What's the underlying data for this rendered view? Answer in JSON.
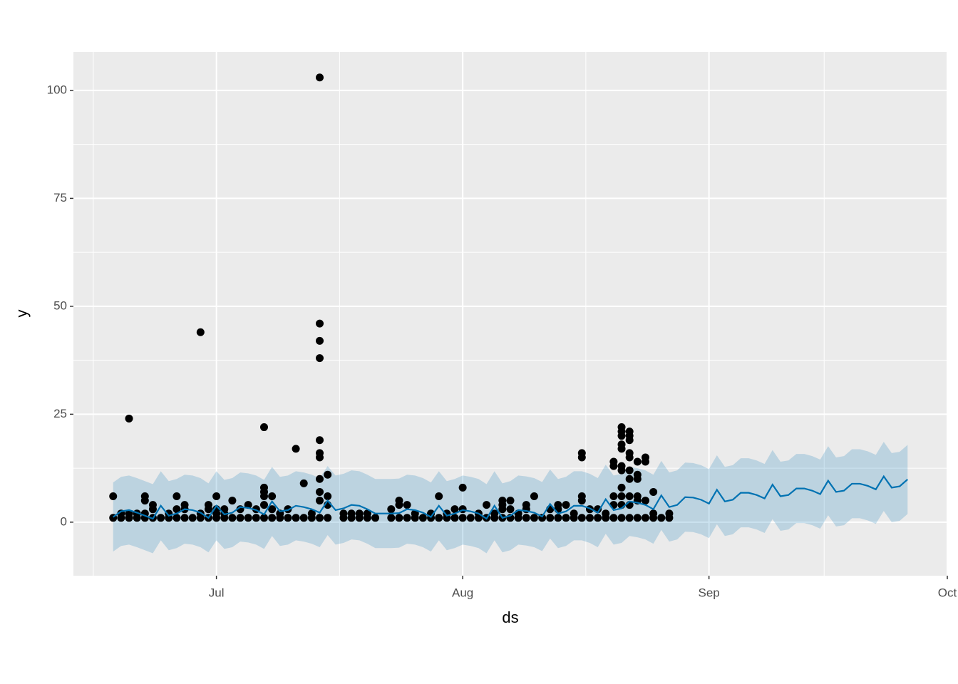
{
  "chart_data": {
    "type": "scatter",
    "x_label": "ds",
    "y_label": "y",
    "color": "#000000",
    "x": [
      -13,
      -13,
      -12,
      -12,
      -11,
      -11,
      -11,
      -10,
      -10,
      -9,
      -9,
      -9,
      -9,
      -8,
      -8,
      -8,
      -7,
      -6,
      -6,
      -5,
      -5,
      -5,
      -4,
      -4,
      -4,
      -3,
      -2,
      -2,
      -2,
      -1,
      -1,
      -1,
      0,
      0,
      0,
      0,
      1,
      1,
      1,
      2,
      2,
      3,
      3,
      4,
      4,
      5,
      5,
      6,
      6,
      6,
      6,
      6,
      6,
      7,
      7,
      7,
      8,
      8,
      9,
      9,
      10,
      10,
      11,
      11,
      12,
      12,
      13,
      13,
      13,
      13,
      13,
      13,
      13,
      13,
      13,
      13,
      13,
      14,
      14,
      14,
      14,
      16,
      16,
      17,
      17,
      18,
      18,
      19,
      19,
      20,
      22,
      22,
      23,
      23,
      23,
      24,
      24,
      25,
      25,
      26,
      27,
      27,
      28,
      28,
      29,
      29,
      30,
      30,
      31,
      31,
      31,
      32,
      33,
      33,
      34,
      34,
      35,
      35,
      36,
      36,
      36,
      36,
      37,
      37,
      37,
      38,
      38,
      39,
      39,
      39,
      40,
      40,
      41,
      42,
      42,
      43,
      43,
      43,
      44,
      44,
      45,
      45,
      46,
      46,
      46,
      46,
      46,
      47,
      47,
      48,
      48,
      49,
      49,
      50,
      50,
      50,
      50,
      50,
      51,
      51,
      51,
      51,
      51,
      51,
      51,
      51,
      51,
      51,
      51,
      52,
      52,
      52,
      52,
      52,
      52,
      52,
      52,
      52,
      52,
      53,
      53,
      53,
      53,
      53,
      53,
      54,
      54,
      54,
      54,
      55,
      55,
      55,
      56,
      57,
      57
    ],
    "values": [
      1,
      6,
      1,
      2,
      1,
      24,
      2,
      1,
      2,
      1,
      5,
      6,
      2,
      1,
      4,
      3,
      1,
      1,
      2,
      1,
      6,
      3,
      1,
      4,
      3,
      1,
      1,
      44,
      2,
      1,
      3,
      4,
      1,
      2,
      3,
      6,
      1,
      2,
      3,
      1,
      5,
      1,
      3,
      1,
      4,
      1,
      3,
      1,
      4,
      22,
      8,
      7,
      6,
      1,
      6,
      3,
      1,
      2,
      1,
      3,
      1,
      17,
      1,
      9,
      1,
      2,
      1,
      103,
      46,
      42,
      38,
      19,
      16,
      15,
      10,
      7,
      5,
      1,
      11,
      6,
      4,
      1,
      2,
      1,
      2,
      1,
      2,
      1,
      2,
      1,
      1,
      3,
      1,
      5,
      4,
      1,
      4,
      1,
      2,
      1,
      1,
      2,
      1,
      6,
      1,
      2,
      1,
      3,
      1,
      3,
      8,
      1,
      1,
      2,
      1,
      4,
      1,
      2,
      1,
      5,
      4,
      3,
      1,
      5,
      3,
      1,
      2,
      1,
      4,
      3,
      1,
      6,
      1,
      1,
      3,
      1,
      4,
      3,
      1,
      4,
      1,
      2,
      1,
      16,
      15,
      6,
      5,
      1,
      3,
      1,
      3,
      1,
      2,
      1,
      14,
      13,
      6,
      4,
      1,
      22,
      21,
      20,
      18,
      17,
      13,
      12,
      8,
      6,
      4,
      1,
      21,
      20,
      19,
      16,
      15,
      12,
      10,
      6,
      4,
      1,
      11,
      10,
      6,
      14,
      5,
      1,
      15,
      14,
      5,
      1,
      7,
      2,
      1,
      1,
      2
    ],
    "forecast": {
      "color": "#0072B2",
      "x": [
        -13,
        -12,
        -11,
        -10,
        -9,
        -8,
        -7,
        -6,
        -5,
        -4,
        -3,
        -2,
        -1,
        0,
        1,
        2,
        3,
        4,
        5,
        6,
        7,
        8,
        9,
        10,
        11,
        12,
        13,
        14,
        15,
        16,
        17,
        18,
        19,
        20,
        21,
        22,
        23,
        24,
        25,
        26,
        27,
        28,
        29,
        30,
        31,
        32,
        33,
        34,
        35,
        36,
        37,
        38,
        39,
        40,
        41,
        42,
        43,
        44,
        45,
        46,
        47,
        48,
        49,
        50,
        51,
        52,
        53,
        54,
        55,
        56,
        57,
        58,
        59,
        60,
        61,
        62,
        63,
        64,
        65,
        66,
        67,
        68,
        69,
        70,
        71,
        72,
        73,
        74,
        75,
        76,
        77,
        78,
        79,
        80,
        81,
        82,
        83,
        84,
        85,
        86,
        87
      ],
      "values": [
        1.2,
        2.5,
        2.8,
        2.2,
        1.5,
        0.8,
        3.8,
        1.5,
        2.0,
        3.0,
        2.8,
        2.2,
        1.0,
        3.8,
        1.8,
        2.2,
        3.5,
        3.3,
        2.8,
        1.8,
        4.8,
        2.5,
        2.8,
        3.8,
        3.5,
        3.0,
        2.2,
        5.0,
        2.8,
        3.2,
        4.0,
        3.8,
        3.0,
        2.0,
        2.0,
        2.0,
        2.1,
        3.0,
        2.8,
        2.2,
        1.2,
        3.8,
        1.5,
        2.0,
        2.8,
        2.5,
        2.0,
        0.8,
        3.8,
        1.0,
        1.5,
        2.8,
        2.6,
        2.2,
        1.3,
        4.2,
        2.0,
        2.5,
        3.8,
        3.8,
        3.2,
        2.2,
        5.3,
        2.8,
        3.2,
        4.8,
        4.5,
        4.0,
        3.0,
        6.2,
        3.5,
        4.0,
        5.8,
        5.7,
        5.2,
        4.3,
        7.5,
        4.8,
        5.2,
        6.8,
        6.8,
        6.3,
        5.5,
        8.7,
        6.0,
        6.3,
        7.8,
        7.8,
        7.3,
        6.5,
        9.6,
        7.0,
        7.3,
        8.9,
        8.9,
        8.4,
        7.6,
        10.6,
        8.0,
        8.3,
        9.9
      ],
      "lower": [
        -6.8,
        -5.5,
        -5.2,
        -5.8,
        -6.5,
        -7.2,
        -4.2,
        -6.5,
        -6.0,
        -5.0,
        -5.2,
        -5.8,
        -7.0,
        -4.2,
        -6.2,
        -5.8,
        -4.5,
        -4.7,
        -5.2,
        -6.2,
        -3.2,
        -5.5,
        -5.2,
        -4.2,
        -4.5,
        -5.0,
        -5.8,
        -3.0,
        -5.2,
        -4.8,
        -4.0,
        -4.2,
        -5.0,
        -6.0,
        -6.0,
        -6.0,
        -5.9,
        -5.0,
        -5.2,
        -5.8,
        -6.8,
        -4.2,
        -6.5,
        -6.0,
        -5.2,
        -5.5,
        -6.0,
        -7.2,
        -4.2,
        -7.0,
        -6.5,
        -5.2,
        -5.4,
        -5.8,
        -6.7,
        -3.8,
        -6.0,
        -5.5,
        -4.2,
        -4.2,
        -4.8,
        -5.8,
        -2.7,
        -5.2,
        -4.8,
        -3.2,
        -3.5,
        -4.0,
        -5.0,
        -1.8,
        -4.5,
        -4.0,
        -2.2,
        -2.3,
        -2.8,
        -3.7,
        -0.5,
        -3.2,
        -2.8,
        -1.2,
        -1.2,
        -1.7,
        -2.5,
        0.7,
        -2.0,
        -1.7,
        -0.2,
        -0.2,
        -0.7,
        -1.5,
        1.6,
        -1.0,
        -0.7,
        0.9,
        0.9,
        0.4,
        -0.4,
        2.6,
        0.0,
        0.3,
        1.9
      ],
      "upper": [
        9.2,
        10.5,
        10.8,
        10.2,
        9.5,
        8.8,
        11.8,
        9.5,
        10.0,
        11.0,
        10.8,
        10.2,
        9.0,
        11.8,
        9.8,
        10.2,
        11.5,
        11.3,
        10.8,
        9.8,
        12.8,
        10.5,
        10.8,
        11.8,
        11.5,
        11.0,
        10.2,
        13.0,
        10.8,
        11.2,
        12.0,
        11.8,
        11.0,
        10.0,
        10.0,
        10.0,
        10.1,
        11.0,
        10.8,
        10.2,
        9.2,
        11.8,
        9.5,
        10.0,
        10.8,
        10.5,
        10.0,
        8.8,
        11.8,
        9.0,
        9.5,
        10.8,
        10.6,
        10.2,
        9.3,
        12.2,
        10.0,
        10.5,
        11.8,
        11.8,
        11.2,
        10.2,
        13.3,
        10.8,
        11.2,
        12.8,
        12.5,
        12.0,
        11.0,
        14.2,
        11.5,
        12.0,
        13.8,
        13.7,
        13.2,
        12.3,
        15.5,
        12.8,
        13.2,
        14.8,
        14.8,
        14.3,
        13.5,
        16.7,
        14.0,
        14.3,
        15.8,
        15.8,
        15.3,
        14.5,
        17.6,
        15.0,
        15.3,
        16.9,
        16.9,
        16.4,
        15.6,
        18.6,
        16.0,
        16.3,
        17.9
      ]
    },
    "xlim": [
      -18,
      92
    ],
    "ylim": [
      -12.4,
      108.9
    ],
    "xticks": [
      {
        "value": 0,
        "label": "Jul"
      },
      {
        "value": 31,
        "label": "Aug"
      },
      {
        "value": 62,
        "label": "Sep"
      },
      {
        "value": 92,
        "label": "Oct"
      }
    ],
    "minor_xticks": [
      -15.5,
      15.5,
      46.5,
      76.5
    ],
    "yticks": [
      0,
      25,
      50,
      75,
      100
    ],
    "minor_yticks": [
      12.5,
      37.5,
      62.5,
      87.5
    ],
    "grid": true
  }
}
